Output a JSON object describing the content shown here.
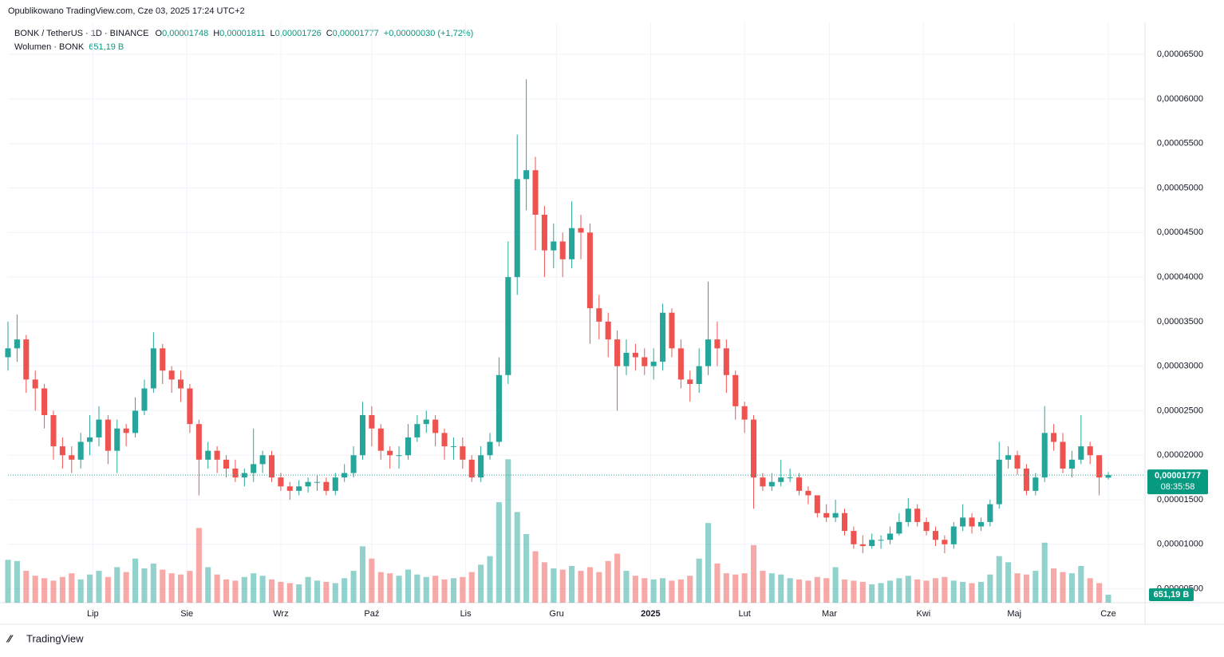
{
  "header": {
    "published": "Opublikowano TradingView.com, Cze 03, 2025 17:24 UTC+2",
    "symbol": "BONK / TetherUS · 1D · BINANCE",
    "ohlc": [
      {
        "key": "O",
        "value": "0,00001748"
      },
      {
        "key": "H",
        "value": "0,00001811"
      },
      {
        "key": "L",
        "value": "0,00001726"
      },
      {
        "key": "C",
        "value": "0,00001777"
      }
    ],
    "change": "+0,00000030 (+1,72%)",
    "volume_title": "Wolumen · BONK"
  },
  "chart_data": {
    "type": "candlestick",
    "up_color": "#26a69a",
    "down_color": "#ef5350",
    "grid": true,
    "open": [
      3.1e-05,
      3.2e-05,
      3.3e-05,
      2.85e-05,
      2.75e-05,
      2.45e-05,
      2.1e-05,
      2e-05,
      1.95e-05,
      2.15e-05,
      2.2e-05,
      2.4e-05,
      2.05e-05,
      2.3e-05,
      2.25e-05,
      2.5e-05,
      2.75e-05,
      3.2e-05,
      2.95e-05,
      2.85e-05,
      2.75e-05,
      2.35e-05,
      1.95e-05,
      2.05e-05,
      1.95e-05,
      1.85e-05,
      1.75e-05,
      1.8e-05,
      1.9e-05,
      2e-05,
      1.75e-05,
      1.65e-05,
      1.6e-05,
      1.65e-05,
      1.7e-05,
      1.7e-05,
      1.6e-05,
      1.75e-05,
      1.8e-05,
      2e-05,
      2.45e-05,
      2.3e-05,
      2.05e-05,
      2e-05,
      2e-05,
      2.2e-05,
      2.35e-05,
      2.4e-05,
      2.25e-05,
      2.1e-05,
      2.1e-05,
      1.95e-05,
      1.75e-05,
      2e-05,
      2.15e-05,
      2.9e-05,
      4e-05,
      5.1e-05,
      5.2e-05,
      4.7e-05,
      4.3e-05,
      4.4e-05,
      4.2e-05,
      4.55e-05,
      4.5e-05,
      3.65e-05,
      3.5e-05,
      3.3e-05,
      3e-05,
      3.15e-05,
      3.1e-05,
      3e-05,
      3.05e-05,
      3.6e-05,
      3.2e-05,
      2.85e-05,
      2.8e-05,
      3e-05,
      3.3e-05,
      3.2e-05,
      2.9e-05,
      2.55e-05,
      2.4e-05,
      1.75e-05,
      1.65e-05,
      1.7e-05,
      1.75e-05,
      1.75e-05,
      1.6e-05,
      1.55e-05,
      1.35e-05,
      1.3e-05,
      1.35e-05,
      1.15e-05,
      1e-05,
      9.8e-06,
      1.05e-05,
      1.05e-05,
      1.12e-05,
      1.25e-05,
      1.4e-05,
      1.25e-05,
      1.15e-05,
      1.05e-05,
      1e-05,
      1.2e-05,
      1.3e-05,
      1.2e-05,
      1.25e-05,
      1.45e-05,
      1.95e-05,
      2e-05,
      1.85e-05,
      1.6e-05,
      1.75e-05,
      2.25e-05,
      2.15e-05,
      1.85e-05,
      1.95e-05,
      2.1e-05,
      2e-05,
      1.748e-05
    ],
    "high": [
      3.5e-05,
      3.58e-05,
      3.35e-05,
      2.95e-05,
      2.8e-05,
      2.5e-05,
      2.2e-05,
      2.1e-05,
      2.25e-05,
      2.45e-05,
      2.55e-05,
      2.45e-05,
      2.4e-05,
      2.35e-05,
      2.65e-05,
      2.85e-05,
      3.38e-05,
      3.25e-05,
      3e-05,
      2.95e-05,
      2.8e-05,
      2.4e-05,
      2.15e-05,
      2.1e-05,
      2e-05,
      1.95e-05,
      1.85e-05,
      2.3e-05,
      2.05e-05,
      2.05e-05,
      1.8e-05,
      1.7e-05,
      1.72e-05,
      1.75e-05,
      1.78e-05,
      1.75e-05,
      1.8e-05,
      1.9e-05,
      2.1e-05,
      2.6e-05,
      2.55e-05,
      2.35e-05,
      2.1e-05,
      2.1e-05,
      2.35e-05,
      2.45e-05,
      2.5e-05,
      2.45e-05,
      2.3e-05,
      2.2e-05,
      2.2e-05,
      2e-05,
      2.1e-05,
      2.25e-05,
      3.1e-05,
      4.4e-05,
      5.6e-05,
      6.22e-05,
      5.35e-05,
      4.8e-05,
      4.6e-05,
      4.5e-05,
      4.85e-05,
      4.7e-05,
      4.6e-05,
      3.8e-05,
      3.6e-05,
      3.4e-05,
      3.3e-05,
      3.25e-05,
      3.2e-05,
      3.2e-05,
      3.7e-05,
      3.65e-05,
      3.3e-05,
      2.95e-05,
      3.2e-05,
      3.95e-05,
      3.5e-05,
      3.3e-05,
      2.95e-05,
      2.6e-05,
      2.45e-05,
      1.8e-05,
      1.8e-05,
      1.95e-05,
      1.85e-05,
      1.8e-05,
      1.65e-05,
      1.55e-05,
      1.45e-05,
      1.5e-05,
      1.4e-05,
      1.2e-05,
      1.1e-05,
      1.12e-05,
      1.1e-05,
      1.2e-05,
      1.35e-05,
      1.52e-05,
      1.45e-05,
      1.3e-05,
      1.2e-05,
      1.1e-05,
      1.25e-05,
      1.45e-05,
      1.35e-05,
      1.3e-05,
      1.5e-05,
      2.15e-05,
      2.1e-05,
      2.05e-05,
      1.9e-05,
      1.8e-05,
      2.55e-05,
      2.35e-05,
      2.25e-05,
      2.05e-05,
      2.45e-05,
      2.15e-05,
      2e-05,
      1.811e-05
    ],
    "low": [
      2.95e-05,
      3.05e-05,
      2.7e-05,
      2.5e-05,
      2.3e-05,
      1.95e-05,
      1.85e-05,
      1.8e-05,
      1.85e-05,
      2e-05,
      2.1e-05,
      1.9e-05,
      1.8e-05,
      2.1e-05,
      2.2e-05,
      2.45e-05,
      2.7e-05,
      2.8e-05,
      2.7e-05,
      2.6e-05,
      2.25e-05,
      1.55e-05,
      1.85e-05,
      1.8e-05,
      1.75e-05,
      1.7e-05,
      1.65e-05,
      1.7e-05,
      1.8e-05,
      1.7e-05,
      1.6e-05,
      1.5e-05,
      1.55e-05,
      1.58e-05,
      1.6e-05,
      1.55e-05,
      1.55e-05,
      1.7e-05,
      1.75e-05,
      1.95e-05,
      2.1e-05,
      1.95e-05,
      1.85e-05,
      1.85e-05,
      1.95e-05,
      2.15e-05,
      2.25e-05,
      2.1e-05,
      1.95e-05,
      1.95e-05,
      1.85e-05,
      1.7e-05,
      1.7e-05,
      1.95e-05,
      2.1e-05,
      2.8e-05,
      3.8e-05,
      4.75e-05,
      4.3e-05,
      4e-05,
      4.1e-05,
      4e-05,
      4.1e-05,
      4.2e-05,
      3.25e-05,
      3.3e-05,
      3.1e-05,
      2.5e-05,
      2.9e-05,
      2.95e-05,
      2.9e-05,
      2.85e-05,
      2.95e-05,
      3.1e-05,
      2.75e-05,
      2.6e-05,
      2.7e-05,
      2.9e-05,
      3e-05,
      2.7e-05,
      2.4e-05,
      2.25e-05,
      1.4e-05,
      1.6e-05,
      1.6e-05,
      1.65e-05,
      1.7e-05,
      1.55e-05,
      1.45e-05,
      1.3e-05,
      1.25e-05,
      1.25e-05,
      1.1e-05,
      9.5e-06,
      9e-06,
      9.5e-06,
      9.5e-06,
      1e-05,
      1.1e-05,
      1.2e-05,
      1.2e-05,
      1.1e-05,
      9.8e-06,
      9e-06,
      9.5e-06,
      1.15e-05,
      1.12e-05,
      1.15e-05,
      1.2e-05,
      1.4e-05,
      1.85e-05,
      1.78e-05,
      1.55e-05,
      1.55e-05,
      1.7e-05,
      2.05e-05,
      1.8e-05,
      1.75e-05,
      1.9e-05,
      1.9e-05,
      1.55e-05,
      1.726e-05
    ],
    "close": [
      3.2e-05,
      3.3e-05,
      2.85e-05,
      2.75e-05,
      2.45e-05,
      2.1e-05,
      2e-05,
      1.95e-05,
      2.15e-05,
      2.2e-05,
      2.4e-05,
      2.05e-05,
      2.3e-05,
      2.25e-05,
      2.5e-05,
      2.75e-05,
      3.2e-05,
      2.95e-05,
      2.85e-05,
      2.75e-05,
      2.35e-05,
      1.95e-05,
      2.05e-05,
      1.95e-05,
      1.85e-05,
      1.75e-05,
      1.8e-05,
      1.9e-05,
      2e-05,
      1.75e-05,
      1.65e-05,
      1.6e-05,
      1.65e-05,
      1.7e-05,
      1.7e-05,
      1.6e-05,
      1.75e-05,
      1.8e-05,
      2e-05,
      2.45e-05,
      2.3e-05,
      2.05e-05,
      2e-05,
      2e-05,
      2.2e-05,
      2.35e-05,
      2.4e-05,
      2.25e-05,
      2.1e-05,
      2.1e-05,
      1.95e-05,
      1.75e-05,
      2e-05,
      2.15e-05,
      2.9e-05,
      4e-05,
      5.1e-05,
      5.2e-05,
      4.7e-05,
      4.3e-05,
      4.4e-05,
      4.2e-05,
      4.55e-05,
      4.5e-05,
      3.65e-05,
      3.5e-05,
      3.3e-05,
      3e-05,
      3.15e-05,
      3.1e-05,
      3e-05,
      3.05e-05,
      3.6e-05,
      3.2e-05,
      2.85e-05,
      2.8e-05,
      3e-05,
      3.3e-05,
      3.2e-05,
      2.9e-05,
      2.55e-05,
      2.4e-05,
      1.75e-05,
      1.65e-05,
      1.7e-05,
      1.75e-05,
      1.75e-05,
      1.6e-05,
      1.55e-05,
      1.35e-05,
      1.3e-05,
      1.35e-05,
      1.15e-05,
      1e-05,
      9.8e-06,
      1.05e-05,
      1.05e-05,
      1.12e-05,
      1.25e-05,
      1.4e-05,
      1.25e-05,
      1.15e-05,
      1.05e-05,
      1e-05,
      1.2e-05,
      1.3e-05,
      1.2e-05,
      1.25e-05,
      1.45e-05,
      1.95e-05,
      2e-05,
      1.85e-05,
      1.6e-05,
      1.75e-05,
      2.25e-05,
      2.15e-05,
      1.85e-05,
      1.95e-05,
      2.1e-05,
      2e-05,
      1.75e-05,
      1.777e-05
    ],
    "volume": [
      3500,
      3400,
      2600,
      2200,
      2000,
      1800,
      2100,
      2400,
      1900,
      2300,
      2600,
      2100,
      2900,
      2500,
      3600,
      2800,
      3200,
      2700,
      2400,
      2300,
      2600,
      6100,
      2900,
      2300,
      1900,
      1800,
      2100,
      2400,
      2200,
      1900,
      1700,
      1600,
      1500,
      2100,
      1800,
      1700,
      1600,
      2000,
      2600,
      4600,
      3600,
      2500,
      2400,
      2200,
      2700,
      2300,
      2100,
      2200,
      1900,
      2000,
      2100,
      2500,
      3100,
      3800,
      8200,
      11700,
      7400,
      5600,
      4200,
      3300,
      2800,
      2700,
      3000,
      2600,
      2900,
      2500,
      3400,
      4000,
      2600,
      2200,
      2000,
      1900,
      2000,
      1800,
      1900,
      2200,
      3600,
      6500,
      3200,
      2400,
      2300,
      2400,
      4700,
      2600,
      2400,
      2300,
      2000,
      1900,
      1800,
      2100,
      2000,
      2900,
      1900,
      1800,
      1700,
      1500,
      1600,
      1800,
      2000,
      2200,
      1900,
      1800,
      2000,
      2100,
      1800,
      1700,
      1600,
      1700,
      2300,
      3800,
      3300,
      2400,
      2300,
      2600,
      4900,
      2800,
      2500,
      2400,
      3000,
      2000,
      1600,
      651.19
    ],
    "ylim": [
      3.44e-06,
      6.86e-05
    ],
    "yticks": [
      {
        "value": 6.5e-05,
        "label": "0,00006500"
      },
      {
        "value": 6e-05,
        "label": "0,00006000"
      },
      {
        "value": 5.5e-05,
        "label": "0,00005500"
      },
      {
        "value": 5e-05,
        "label": "0,00005000"
      },
      {
        "value": 4.5e-05,
        "label": "0,00004500"
      },
      {
        "value": 4e-05,
        "label": "0,00004000"
      },
      {
        "value": 3.5e-05,
        "label": "0,00003500"
      },
      {
        "value": 3e-05,
        "label": "0,00003000"
      },
      {
        "value": 2.5e-05,
        "label": "0,00002500"
      },
      {
        "value": 2e-05,
        "label": "0,00002000"
      },
      {
        "value": 1.5e-05,
        "label": "0,00001500"
      },
      {
        "value": 1e-05,
        "label": "0,00001000"
      },
      {
        "value": 5e-06,
        "label": "0,00000500"
      }
    ],
    "xticks": [
      {
        "value": 9.33,
        "label": "Lip"
      },
      {
        "value": 19.67,
        "label": "Sie"
      },
      {
        "value": 30,
        "label": "Wrz"
      },
      {
        "value": 40,
        "label": "Paź"
      },
      {
        "value": 50.33,
        "label": "Lis"
      },
      {
        "value": 60.33,
        "label": "Gru"
      },
      {
        "value": 70.67,
        "label": "2025"
      },
      {
        "value": 81,
        "label": "Lut"
      },
      {
        "value": 90.33,
        "label": "Mar"
      },
      {
        "value": 100.67,
        "label": "Kwi"
      },
      {
        "value": 110.67,
        "label": "Maj"
      },
      {
        "value": 121,
        "label": "Cze"
      }
    ],
    "vlim": [
      0,
      14000
    ],
    "last_price_label": "0,00001777",
    "countdown": "08:35:58",
    "volume_label": "651,19 B"
  },
  "footer": {
    "logo": "TradingView"
  }
}
